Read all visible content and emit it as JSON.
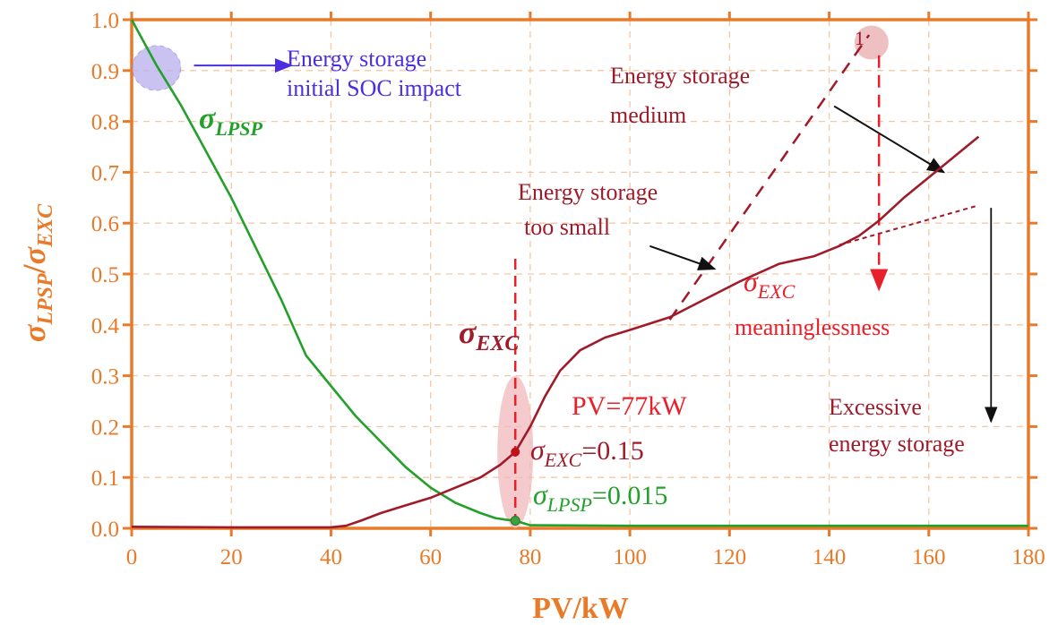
{
  "chart_data": {
    "type": "line",
    "xlabel": "PV/kW",
    "ylabel": {
      "sym1": "σ",
      "sub1": "LPSP",
      "sep": "/",
      "sym2": "σ",
      "sub2": "EXC"
    },
    "xlim": [
      0,
      180
    ],
    "ylim": [
      0,
      1.0
    ],
    "xticks": [
      "0",
      "20",
      "40",
      "60",
      "80",
      "100",
      "120",
      "140",
      "160",
      "180"
    ],
    "yticks": [
      "0.0",
      "0.1",
      "0.2",
      "0.3",
      "0.4",
      "0.5",
      "0.6",
      "0.7",
      "0.8",
      "0.9",
      "1.0"
    ],
    "grid": true,
    "series": [
      {
        "name": "σLPSP",
        "label_sym": "σ",
        "label_sub": "LPSP",
        "color": "#22a02a",
        "x": [
          0,
          5,
          10,
          15,
          20,
          25,
          30,
          35,
          40,
          45,
          50,
          55,
          60,
          65,
          70,
          73,
          75,
          77,
          80,
          100,
          120,
          140,
          160,
          180
        ],
        "y": [
          1.0,
          0.91,
          0.83,
          0.74,
          0.65,
          0.55,
          0.45,
          0.34,
          0.28,
          0.22,
          0.17,
          0.12,
          0.08,
          0.05,
          0.03,
          0.02,
          0.017,
          0.015,
          0.006,
          0.005,
          0.005,
          0.005,
          0.005,
          0.005
        ]
      },
      {
        "name": "σEXC",
        "label_sym": "σ",
        "label_sub": "EXC",
        "color": "#a01b2a",
        "x": [
          0,
          20,
          40,
          43,
          46,
          50,
          55,
          60,
          65,
          70,
          74,
          77,
          80,
          83,
          86,
          90,
          95,
          100,
          108,
          115,
          122,
          130,
          137,
          142,
          146,
          150,
          155,
          160,
          165,
          170
        ],
        "y": [
          0.003,
          0.002,
          0.002,
          0.005,
          0.015,
          0.03,
          0.045,
          0.06,
          0.08,
          0.1,
          0.125,
          0.15,
          0.2,
          0.26,
          0.31,
          0.35,
          0.375,
          0.39,
          0.415,
          0.45,
          0.485,
          0.52,
          0.535,
          0.555,
          0.575,
          0.605,
          0.65,
          0.69,
          0.73,
          0.77
        ]
      }
    ],
    "extension_line": {
      "x": [
        142,
        170
      ],
      "y": [
        0.557,
        0.635
      ]
    },
    "annotations": {
      "soc": {
        "line1": "Energy storage",
        "line2": "initial SOC impact",
        "color": "#4a2ee0"
      },
      "medium": {
        "line1": "Energy storage",
        "line2": "medium"
      },
      "too_small": {
        "line1": "Energy storage",
        "line2": "too small"
      },
      "meaningless_sym": "σ",
      "meaningless_sub": "EXC",
      "meaningless": "meaninglessness",
      "excessive": {
        "line1": "Excessive",
        "line2": "energy storage"
      },
      "marker_label": "1",
      "pv_point": {
        "pv": "PV=77kW",
        "exc_sym": "σ",
        "exc_sub": "EXC",
        "exc_val": "=0.15",
        "lpsp_sym": "σ",
        "lpsp_sub": "LPSP",
        "lpsp_val": "=0.015",
        "x": 77,
        "exc": 0.15,
        "lpsp": 0.015
      }
    },
    "colors": {
      "axis": "#e87a2a",
      "grid": "#f2c9a6",
      "annotation_red": "#a01b2a",
      "bright_red": "#e8202a"
    }
  }
}
